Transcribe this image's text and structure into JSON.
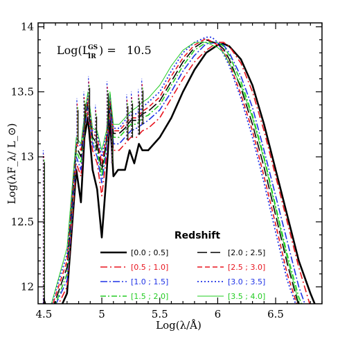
{
  "chart_data": {
    "type": "line",
    "xlabel": "Log(λ/Å)",
    "ylabel": "Log(λF_λ/ L_⊙)",
    "xlim": [
      4.45,
      6.9
    ],
    "ylim": [
      11.87,
      14.03
    ],
    "xticks": [
      4.5,
      5,
      5.5,
      6,
      6.5
    ],
    "xtick_labels": [
      "4.5",
      "5",
      "5.5",
      "6",
      "6.5"
    ],
    "yticks": [
      12,
      12.5,
      13,
      13.5,
      14
    ],
    "ytick_labels": [
      "12",
      "12.5",
      "13",
      "13.5",
      "14"
    ],
    "annotation": {
      "prefix": "Log(L",
      "sup": "GS",
      "sub": "IR",
      "suffix": ") =   10.5"
    },
    "legend": {
      "title": "Redshift",
      "placement": "bottom-center"
    },
    "series": [
      {
        "name": "[0.0 ; 0.5]",
        "color": "#000000",
        "dash": "solid",
        "width": 2.6,
        "x": [
          4.5,
          4.52,
          4.6,
          4.7,
          4.78,
          4.82,
          4.85,
          4.88,
          4.92,
          4.96,
          5.0,
          5.04,
          5.07,
          5.1,
          5.14,
          5.2,
          5.24,
          5.28,
          5.32,
          5.35,
          5.4,
          5.5,
          5.6,
          5.7,
          5.8,
          5.9,
          6.0,
          6.05,
          6.1,
          6.2,
          6.3,
          6.4,
          6.5,
          6.6,
          6.7,
          6.8,
          6.86
        ],
        "y": [
          11.9,
          11.85,
          11.75,
          11.95,
          12.9,
          12.65,
          13.15,
          13.3,
          12.9,
          12.75,
          12.38,
          12.85,
          13.3,
          12.85,
          12.9,
          12.9,
          13.05,
          12.95,
          13.1,
          13.05,
          13.05,
          13.15,
          13.3,
          13.5,
          13.67,
          13.8,
          13.86,
          13.87,
          13.85,
          13.75,
          13.55,
          13.25,
          12.9,
          12.55,
          12.2,
          11.95,
          11.82
        ]
      },
      {
        "name": "[0.5 ; 1.0]",
        "color": "#e8141e",
        "dash": "10,4,2,4",
        "width": 1.6,
        "x": [
          4.6,
          4.7,
          4.78,
          4.82,
          4.85,
          4.88,
          4.92,
          4.96,
          5.0,
          5.04,
          5.07,
          5.1,
          5.15,
          5.2,
          5.25,
          5.3,
          5.35,
          5.4,
          5.5,
          5.6,
          5.7,
          5.8,
          5.9,
          6.0,
          6.05,
          6.1,
          6.2,
          6.3,
          6.4,
          6.5,
          6.6,
          6.7,
          6.8
        ],
        "y": [
          11.82,
          12.0,
          12.95,
          12.85,
          13.2,
          13.35,
          13.05,
          12.95,
          12.7,
          13.0,
          13.35,
          13.05,
          13.05,
          13.1,
          13.15,
          13.15,
          13.2,
          13.22,
          13.3,
          13.45,
          13.6,
          13.73,
          13.82,
          13.88,
          13.88,
          13.85,
          13.72,
          13.5,
          13.2,
          12.85,
          12.5,
          12.15,
          11.85
        ]
      },
      {
        "name": "[1.0 ; 1.5]",
        "color": "#1e32e6",
        "dash": "10,3,2,3",
        "width": 1.6,
        "x": [
          4.6,
          4.7,
          4.78,
          4.82,
          4.85,
          4.88,
          4.92,
          4.96,
          5.0,
          5.04,
          5.07,
          5.1,
          5.15,
          5.2,
          5.25,
          5.3,
          5.35,
          5.4,
          5.5,
          5.6,
          5.7,
          5.8,
          5.9,
          6.0,
          6.05,
          6.1,
          6.2,
          6.3,
          6.4,
          6.5,
          6.6,
          6.7,
          6.78
        ],
        "y": [
          11.86,
          12.05,
          13.0,
          12.9,
          13.22,
          13.38,
          13.1,
          13.0,
          12.8,
          13.05,
          13.38,
          13.1,
          13.1,
          13.15,
          13.2,
          13.22,
          13.25,
          13.28,
          13.36,
          13.5,
          13.66,
          13.78,
          13.87,
          13.88,
          13.86,
          13.8,
          13.62,
          13.38,
          13.05,
          12.7,
          12.35,
          12.0,
          11.8
        ]
      },
      {
        "name": "[1.5 ; 2.0]",
        "color": "#22cc22",
        "dash": "8,3,2,3",
        "width": 1.6,
        "x": [
          4.58,
          4.7,
          4.78,
          4.82,
          4.85,
          4.88,
          4.92,
          4.96,
          5.0,
          5.04,
          5.07,
          5.1,
          5.15,
          5.2,
          5.25,
          5.3,
          5.35,
          5.4,
          5.5,
          5.6,
          5.7,
          5.8,
          5.9,
          6.0,
          6.05,
          6.1,
          6.2,
          6.3,
          6.4,
          6.5,
          6.6,
          6.7,
          6.76
        ],
        "y": [
          11.82,
          12.1,
          13.05,
          12.95,
          13.25,
          13.4,
          13.12,
          13.05,
          12.85,
          13.1,
          13.4,
          13.15,
          13.15,
          13.2,
          13.25,
          13.25,
          13.3,
          13.32,
          13.4,
          13.55,
          13.7,
          13.82,
          13.88,
          13.88,
          13.85,
          13.78,
          13.58,
          13.32,
          13.0,
          12.62,
          12.25,
          11.92,
          11.8
        ]
      },
      {
        "name": "[2.0 ; 2.5]",
        "color": "#000000",
        "dash": "14,5",
        "width": 1.6,
        "x": [
          4.57,
          4.7,
          4.78,
          4.82,
          4.85,
          4.88,
          4.92,
          4.96,
          5.0,
          5.04,
          5.07,
          5.1,
          5.15,
          5.2,
          5.25,
          5.3,
          5.35,
          5.4,
          5.5,
          5.6,
          5.7,
          5.8,
          5.9,
          6.0,
          6.05,
          6.1,
          6.2,
          6.3,
          6.4,
          6.5,
          6.6,
          6.7,
          6.74
        ],
        "y": [
          11.82,
          12.15,
          13.08,
          13.0,
          13.27,
          13.42,
          13.15,
          13.1,
          12.9,
          13.12,
          13.42,
          13.18,
          13.18,
          13.22,
          13.28,
          13.28,
          13.33,
          13.35,
          13.43,
          13.58,
          13.73,
          13.84,
          13.9,
          13.87,
          13.83,
          13.75,
          13.53,
          13.25,
          12.92,
          12.55,
          12.18,
          11.85,
          11.8
        ]
      },
      {
        "name": "[2.5 ; 3.0]",
        "color": "#e8141e",
        "dash": "7,4",
        "width": 1.6,
        "x": [
          4.56,
          4.7,
          4.78,
          4.82,
          4.85,
          4.88,
          4.92,
          4.96,
          5.0,
          5.04,
          5.07,
          5.1,
          5.15,
          5.2,
          5.25,
          5.3,
          5.35,
          5.4,
          5.5,
          5.6,
          5.7,
          5.8,
          5.9,
          6.0,
          6.05,
          6.1,
          6.2,
          6.3,
          6.4,
          6.5,
          6.6,
          6.7,
          6.72
        ],
        "y": [
          11.82,
          12.2,
          13.1,
          13.05,
          13.28,
          13.45,
          13.18,
          13.15,
          12.95,
          13.15,
          13.45,
          13.2,
          13.2,
          13.25,
          13.3,
          13.3,
          13.35,
          13.38,
          13.46,
          13.62,
          13.76,
          13.86,
          13.91,
          13.86,
          13.81,
          13.72,
          13.48,
          13.2,
          12.85,
          12.48,
          12.1,
          11.82,
          11.8
        ]
      },
      {
        "name": "[3.0 ; 3.5]",
        "color": "#1e32e6",
        "dash": "2,3",
        "width": 1.8,
        "x": [
          4.55,
          4.7,
          4.78,
          4.82,
          4.85,
          4.88,
          4.92,
          4.96,
          5.0,
          5.04,
          5.07,
          5.1,
          5.15,
          5.2,
          5.25,
          5.3,
          5.35,
          5.4,
          5.5,
          5.6,
          5.7,
          5.8,
          5.9,
          5.95,
          6.0,
          6.1,
          6.2,
          6.3,
          6.4,
          6.5,
          6.6,
          6.7
        ],
        "y": [
          11.82,
          12.25,
          13.12,
          13.08,
          13.3,
          13.48,
          13.2,
          13.18,
          13.0,
          13.18,
          13.48,
          13.22,
          13.22,
          13.28,
          13.33,
          13.33,
          13.38,
          13.42,
          13.5,
          13.66,
          13.8,
          13.88,
          13.92,
          13.92,
          13.88,
          13.7,
          13.45,
          13.15,
          12.8,
          12.42,
          12.05,
          11.8
        ]
      },
      {
        "name": "[3.5 ; 4.0]",
        "color": "#22cc22",
        "dash": "solid",
        "width": 1.0,
        "x": [
          4.55,
          4.7,
          4.78,
          4.82,
          4.85,
          4.88,
          4.92,
          4.96,
          5.0,
          5.04,
          5.07,
          5.1,
          5.15,
          5.2,
          5.25,
          5.3,
          5.35,
          5.4,
          5.5,
          5.6,
          5.7,
          5.8,
          5.9,
          6.0,
          6.05,
          6.1,
          6.2,
          6.3,
          6.4,
          6.5,
          6.6,
          6.7,
          6.8
        ],
        "y": [
          11.82,
          12.3,
          13.15,
          13.1,
          13.32,
          13.5,
          13.22,
          13.2,
          13.05,
          13.2,
          13.5,
          13.25,
          13.25,
          13.3,
          13.35,
          13.38,
          13.42,
          13.45,
          13.55,
          13.7,
          13.82,
          13.88,
          13.88,
          13.84,
          13.8,
          13.72,
          13.55,
          13.3,
          12.98,
          12.6,
          12.22,
          11.88,
          11.8
        ]
      }
    ],
    "line_peaks": {
      "note": "narrow emission features drawn as spikes",
      "x": [
        4.5,
        4.79,
        4.85,
        4.89,
        4.95,
        5.05,
        5.09,
        5.22,
        5.26,
        5.32,
        5.35
      ],
      "y": [
        13.05,
        13.45,
        13.5,
        13.62,
        13.4,
        13.58,
        13.3,
        13.48,
        13.5,
        13.52,
        13.6
      ]
    }
  }
}
